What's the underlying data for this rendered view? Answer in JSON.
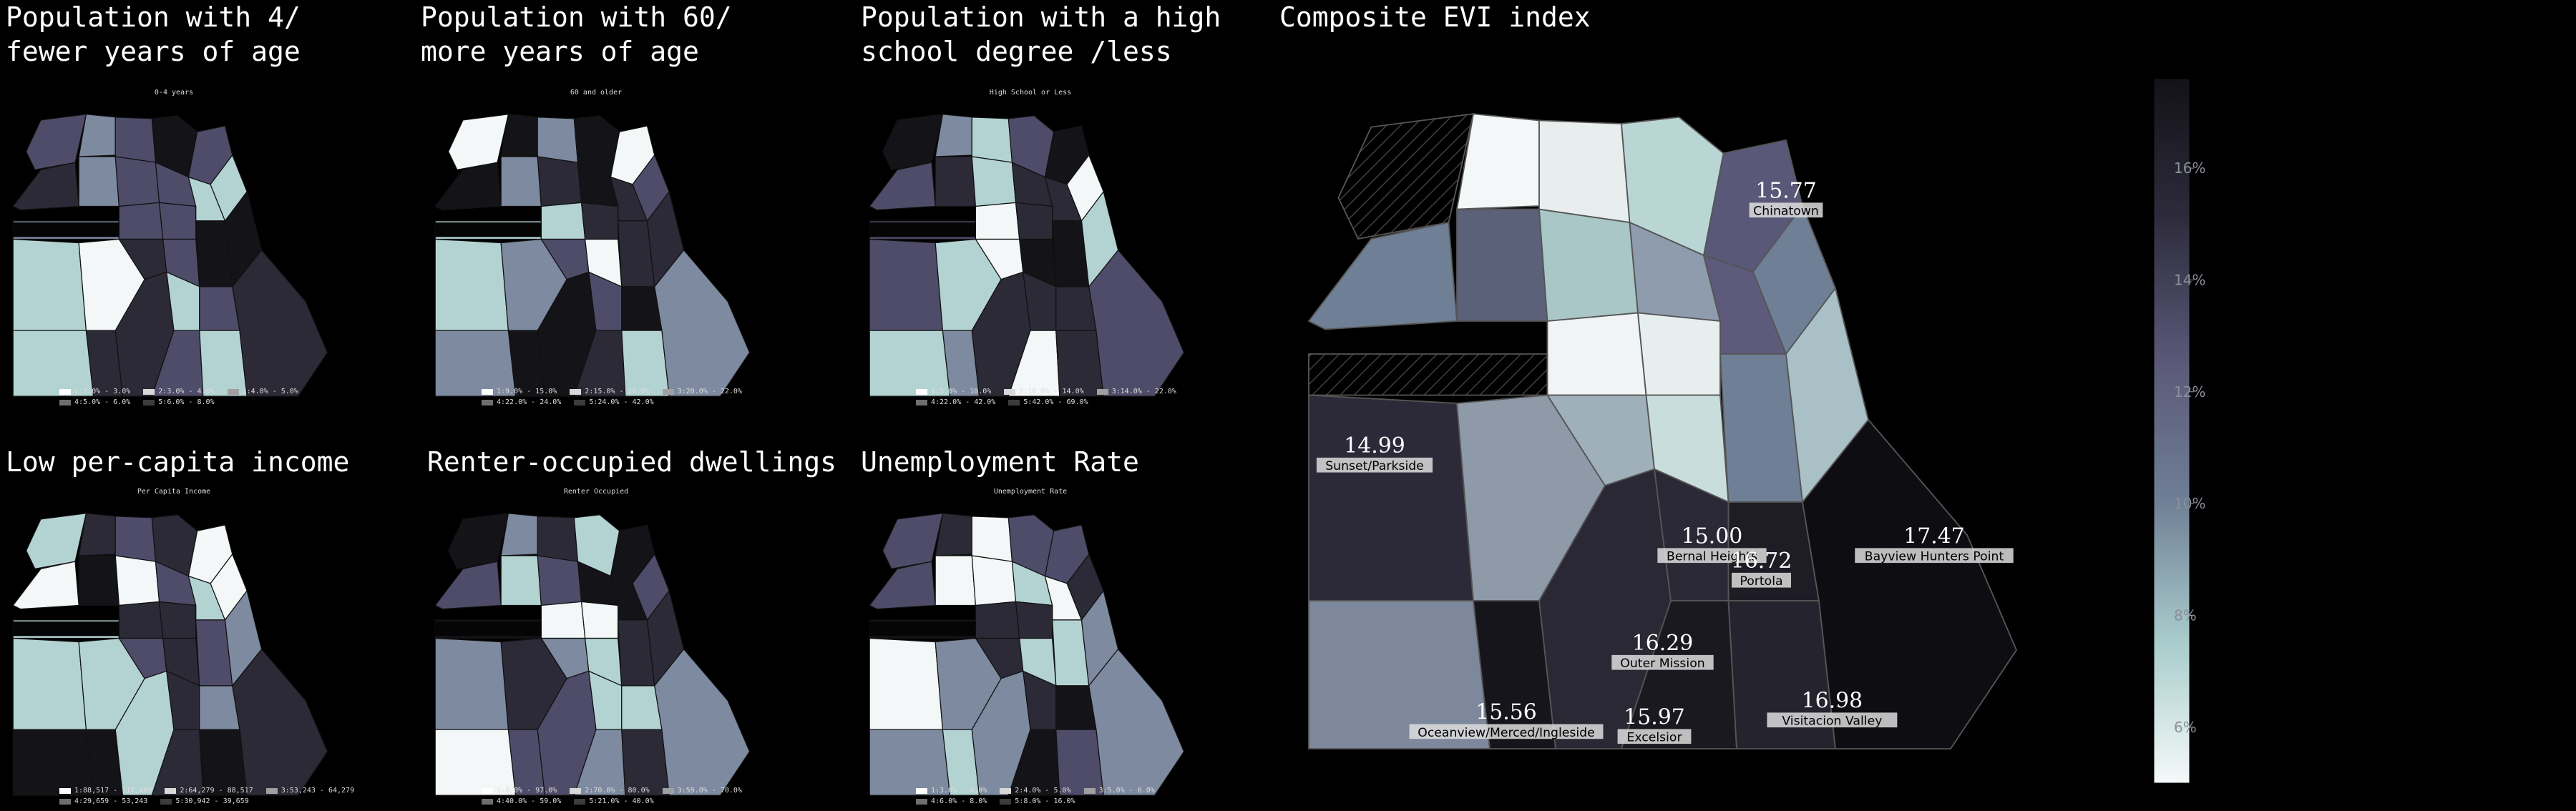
{
  "panels": [
    {
      "title": "Population with 4/ fewer years of age",
      "subtitle": "0-4 years",
      "legend": [
        "1:2.0% - 3.0%",
        "2:3.0% - 4.0%",
        "3:4.0% - 5.0%",
        "4:5.0% - 6.0%",
        "5:6.0% - 8.0%"
      ]
    },
    {
      "title": "Population with 60/ more years of age",
      "subtitle": "60 and older",
      "legend": [
        "1:9.0% - 15.0%",
        "2:15.0% - 20.0%",
        "3:20.0% - 22.0%",
        "4:22.0% - 24.0%",
        "5:24.0% - 42.0%"
      ]
    },
    {
      "title": "Population with a high school degree /less",
      "subtitle": "High School or Less",
      "legend": [
        "1:5.0% - 10.0%",
        "2:10.0% - 14.0%",
        "3:14.0% - 22.0%",
        "4:22.0% - 42.0%",
        "5:42.0% - 69.0%"
      ]
    },
    {
      "title": "Low per-capita income",
      "subtitle": "Per Capita Income",
      "legend": [
        "1:88,517 - 117,489",
        "2:64,279 - 88,517",
        "3:53,243 - 64,279",
        "4:29,659 - 53,243",
        "5:30,942 - 39,659"
      ]
    },
    {
      "title": "Renter-occupied dwellings",
      "subtitle": "Renter Occupied",
      "legend": [
        "1:0.0% - 97.0%",
        "2:70.0% - 80.0%",
        "3:59.0% - 70.0%",
        "4:40.0% - 59.0%",
        "5:21.0% - 40.0%"
      ]
    },
    {
      "title": "Unemployment Rate",
      "subtitle": "Unemployment Rate",
      "legend": [
        "1:3.0% - 4.0%",
        "2:4.0% - 5.0%",
        "3:5.0% - 6.0%",
        "4:6.0% - 8.0%",
        "5:8.0% - 16.0%"
      ]
    }
  ],
  "main": {
    "title": "Composite EVI index"
  },
  "chart_data": {
    "type": "heatmap",
    "title": "Composite EVI index",
    "colorbar": {
      "ticks": [
        "6%",
        "8%",
        "10%",
        "12%",
        "14%",
        "16%"
      ],
      "range": [
        5,
        17.6
      ],
      "colors": [
        "#f5f9f9",
        "#a9cccc",
        "#6f7f95",
        "#5a5878",
        "#2e2c3c",
        "#131218"
      ]
    },
    "labeled_neighborhoods": [
      {
        "name": "Chinatown",
        "value": "15.77"
      },
      {
        "name": "Sunset/Parkside",
        "value": "14.99"
      },
      {
        "name": "Bernal Heights",
        "value": "15.00"
      },
      {
        "name": "Bayview Hunters Point",
        "value": "17.47"
      },
      {
        "name": "Portola",
        "value": "16.72"
      },
      {
        "name": "Outer Mission",
        "value": "16.29"
      },
      {
        "name": "Excelsior",
        "value": "15.97"
      },
      {
        "name": "Oceanview/Merced/Ingleside",
        "value": "15.56"
      },
      {
        "name": "Visitacion Valley",
        "value": "16.98"
      }
    ]
  }
}
